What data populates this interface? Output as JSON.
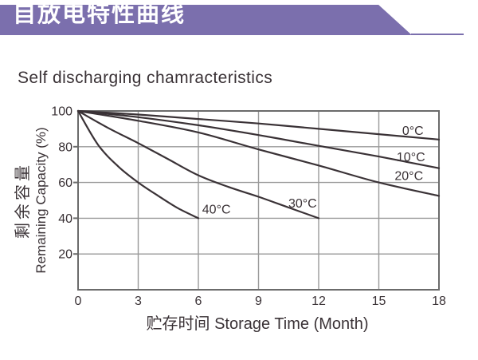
{
  "banner": {
    "title": "自放电特性曲线"
  },
  "page": {
    "subtitle": "Self discharging chamracteristics"
  },
  "colors": {
    "banner_purple": "#7b6fad",
    "ink": "#3a3236",
    "grid_gray": "#9a9a9a",
    "axis_gray": "#6b6b6b",
    "text_white": "#ffffff"
  },
  "chart_data": {
    "type": "line",
    "title": "Self discharging chamracteristics",
    "xlabel": "贮存时间 Storage Time (Month)",
    "ylabel_cn": "剩余容量",
    "ylabel_en": "Remaining Capacity (%)",
    "xlim": [
      0,
      18
    ],
    "ylim": [
      0,
      100
    ],
    "x_ticks": [
      0,
      3,
      6,
      9,
      12,
      15,
      18
    ],
    "y_ticks": [
      100,
      80,
      60,
      40,
      20
    ],
    "grid": true,
    "legend_position": "inline-labels-on-curves",
    "series": [
      {
        "name": "0°C",
        "label_at": [
          16.7,
          89
        ],
        "points": [
          [
            0,
            100
          ],
          [
            3,
            98
          ],
          [
            6,
            95.5
          ],
          [
            9,
            93
          ],
          [
            12,
            90
          ],
          [
            15,
            87
          ],
          [
            18,
            84
          ]
        ]
      },
      {
        "name": "10°C",
        "label_at": [
          16.6,
          74.3
        ],
        "points": [
          [
            0,
            100
          ],
          [
            3,
            96.5
          ],
          [
            6,
            92
          ],
          [
            9,
            86.5
          ],
          [
            12,
            80.5
          ],
          [
            15,
            74.5
          ],
          [
            18,
            68
          ]
        ]
      },
      {
        "name": "20°C",
        "label_at": [
          16.5,
          63.8
        ],
        "points": [
          [
            0,
            100
          ],
          [
            3,
            94.5
          ],
          [
            6,
            88
          ],
          [
            9,
            78.5
          ],
          [
            12,
            69.5
          ],
          [
            15,
            60
          ],
          [
            18,
            52.5
          ]
        ]
      },
      {
        "name": "30°C",
        "label_at": [
          11.2,
          48.5
        ],
        "points": [
          [
            0,
            100
          ],
          [
            1.5,
            90.5
          ],
          [
            3,
            82
          ],
          [
            4.5,
            73
          ],
          [
            6,
            64
          ],
          [
            7.5,
            57.5
          ],
          [
            9,
            52
          ],
          [
            10.5,
            46
          ],
          [
            12,
            40
          ]
        ]
      },
      {
        "name": "40°C",
        "label_at": [
          6.9,
          45
        ],
        "points": [
          [
            0,
            100
          ],
          [
            1,
            81
          ],
          [
            2,
            69
          ],
          [
            3,
            60
          ],
          [
            4,
            52.5
          ],
          [
            5,
            45.5
          ],
          [
            6,
            40
          ]
        ]
      }
    ]
  }
}
